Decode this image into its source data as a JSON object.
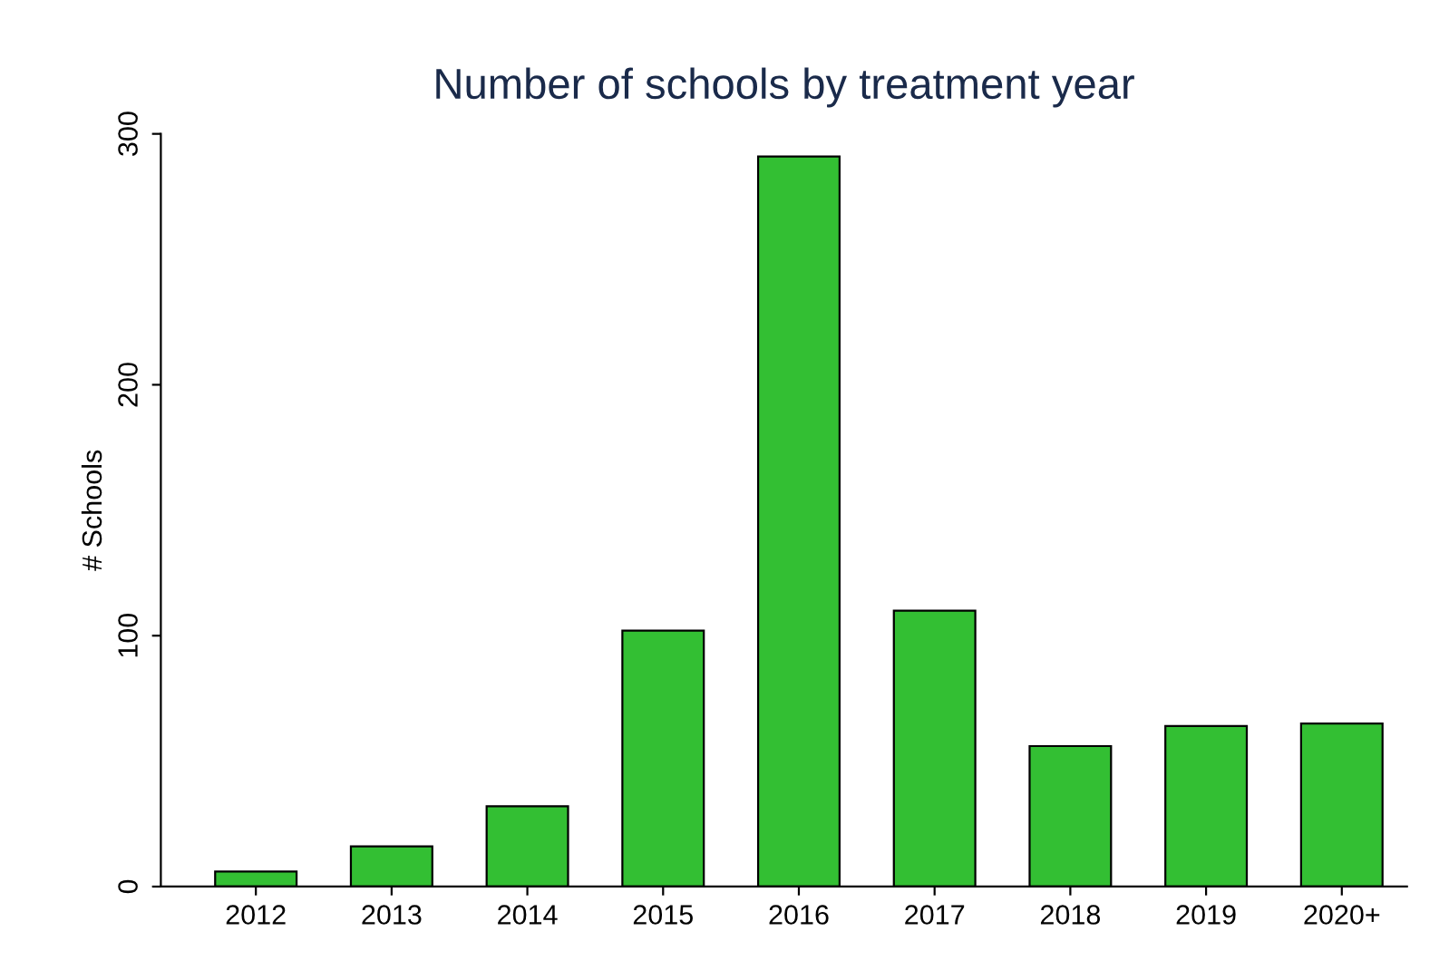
{
  "chart_data": {
    "type": "bar",
    "title": "Number of schools by treatment year",
    "ylabel": "# Schools",
    "categories": [
      "2012",
      "2013",
      "2014",
      "2015",
      "2016",
      "2017",
      "2018",
      "2019",
      "2020+"
    ],
    "values": [
      6,
      16,
      32,
      102,
      291,
      110,
      56,
      64,
      65
    ],
    "color": "#33bf33",
    "ylim": [
      0,
      300
    ],
    "yticks": [
      0,
      100,
      200,
      300
    ],
    "grid": false,
    "legend": false
  }
}
